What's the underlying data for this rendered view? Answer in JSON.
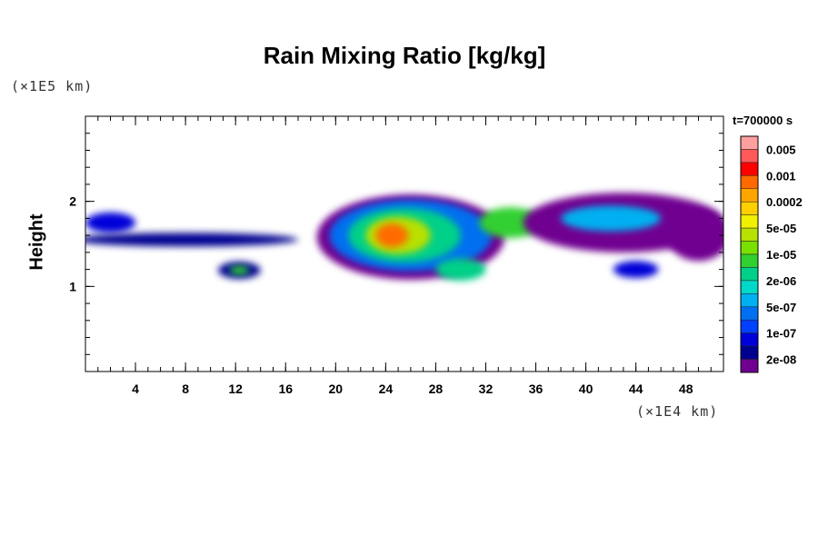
{
  "chart_data": {
    "type": "heatmap",
    "title": "Rain Mixing Ratio [kg/kg]",
    "ylabel": "Height",
    "xlabel": "",
    "x_unit_label": "(×1E4 km)",
    "y_unit_label": "(×1E5 km)",
    "xlim": [
      0,
      51
    ],
    "ylim": [
      0,
      3
    ],
    "x_ticks": [
      4,
      8,
      12,
      16,
      20,
      24,
      28,
      32,
      36,
      40,
      44,
      48
    ],
    "x_minor_step": 1,
    "y_ticks": [
      1,
      2
    ],
    "y_minor_step": 0.2,
    "colorbar": {
      "title": "t=700000 s",
      "levels": [
        "0.005",
        "0.001",
        "0.0002",
        "5e-05",
        "1e-05",
        "2e-06",
        "5e-07",
        "1e-07",
        "2e-08"
      ],
      "colors": [
        "#ffa0a0",
        "#ff5a5a",
        "#ff0000",
        "#ff6a00",
        "#ffa500",
        "#ffd000",
        "#f0f000",
        "#b8e000",
        "#7ae000",
        "#30d030",
        "#00d088",
        "#00d8c8",
        "#00b0f0",
        "#0070f0",
        "#0040ff",
        "#0000d8",
        "#000090",
        "#700090"
      ]
    },
    "field": {
      "background": "#ffffff",
      "blobs": [
        {
          "x": 26,
          "y": 1.58,
          "rx": 7.5,
          "ry": 0.5,
          "level": 0
        },
        {
          "x": 26,
          "y": 1.6,
          "rx": 6.5,
          "ry": 0.42,
          "level": 4
        },
        {
          "x": 25.5,
          "y": 1.6,
          "rx": 4.5,
          "ry": 0.32,
          "level": 7
        },
        {
          "x": 25,
          "y": 1.6,
          "rx": 2.6,
          "ry": 0.22,
          "level": 10
        },
        {
          "x": 24.5,
          "y": 1.6,
          "rx": 1.3,
          "ry": 0.14,
          "level": 14
        },
        {
          "x": 34,
          "y": 1.75,
          "rx": 2.5,
          "ry": 0.18,
          "level": 8
        },
        {
          "x": 30,
          "y": 1.2,
          "rx": 2.0,
          "ry": 0.13,
          "level": 7
        },
        {
          "x": 12.3,
          "y": 1.19,
          "rx": 1.7,
          "ry": 0.1,
          "level": 1
        },
        {
          "x": 12.3,
          "y": 1.19,
          "rx": 0.8,
          "ry": 0.05,
          "level": 8
        },
        {
          "x": 44,
          "y": 1.2,
          "rx": 1.8,
          "ry": 0.1,
          "level": 2
        },
        {
          "x": 43,
          "y": 1.75,
          "rx": 8,
          "ry": 0.35,
          "level": 0
        },
        {
          "x": 42,
          "y": 1.8,
          "rx": 4,
          "ry": 0.15,
          "level": 5
        },
        {
          "x": 2,
          "y": 1.75,
          "rx": 2,
          "ry": 0.12,
          "level": 2
        },
        {
          "x": 8,
          "y": 1.55,
          "rx": 9,
          "ry": 0.08,
          "level": 1
        },
        {
          "x": 49,
          "y": 1.6,
          "rx": 2.5,
          "ry": 0.3,
          "level": 0
        }
      ]
    }
  }
}
